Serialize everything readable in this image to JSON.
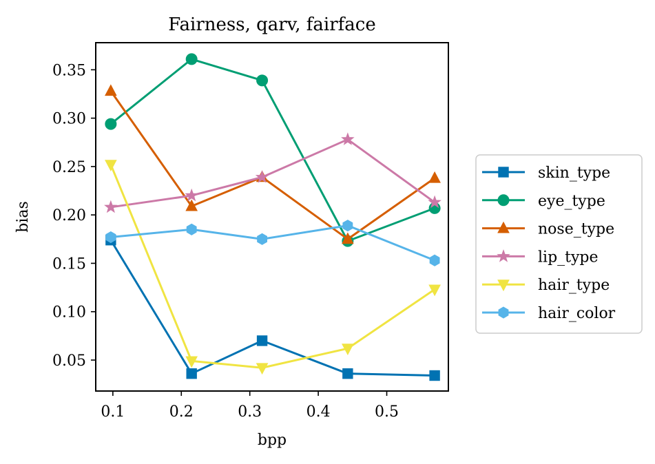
{
  "chart_data": {
    "type": "line",
    "title": "Fairness, qarv, fairface",
    "xlabel": "bpp",
    "ylabel": "bias",
    "xlim": [
      0.075,
      0.59
    ],
    "ylim": [
      0.018,
      0.378
    ],
    "xticks": [
      0.1,
      0.2,
      0.3,
      0.4,
      0.5
    ],
    "xtick_labels": [
      "0.1",
      "0.2",
      "0.3",
      "0.4",
      "0.5"
    ],
    "yticks": [
      0.05,
      0.1,
      0.15,
      0.2,
      0.25,
      0.3,
      0.35
    ],
    "ytick_labels": [
      "0.05",
      "0.10",
      "0.15",
      "0.20",
      "0.25",
      "0.30",
      "0.35"
    ],
    "grid": false,
    "legend_position": "outside-right",
    "x": [
      0.097,
      0.215,
      0.318,
      0.443,
      0.57
    ],
    "series": [
      {
        "name": "skin_type",
        "color": "#0072b2",
        "marker": "square",
        "values": [
          0.174,
          0.036,
          0.07,
          0.036,
          0.034
        ]
      },
      {
        "name": "eye_type",
        "color": "#009e73",
        "marker": "circle",
        "values": [
          0.294,
          0.361,
          0.339,
          0.173,
          0.207
        ]
      },
      {
        "name": "nose_type",
        "color": "#d55e00",
        "marker": "triangle-up",
        "values": [
          0.328,
          0.209,
          0.239,
          0.175,
          0.238
        ]
      },
      {
        "name": "lip_type",
        "color": "#cc79a7",
        "marker": "star",
        "values": [
          0.208,
          0.22,
          0.239,
          0.278,
          0.213
        ]
      },
      {
        "name": "hair_type",
        "color": "#f0e442",
        "marker": "triangle-down",
        "values": [
          0.252,
          0.049,
          0.042,
          0.062,
          0.123
        ]
      },
      {
        "name": "hair_color",
        "color": "#56b4e9",
        "marker": "hexagon",
        "values": [
          0.177,
          0.185,
          0.175,
          0.189,
          0.153
        ]
      }
    ]
  }
}
